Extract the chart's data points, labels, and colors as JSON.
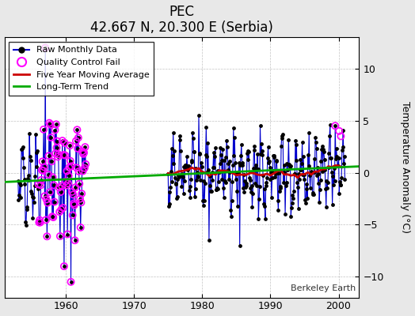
{
  "title": "PEC",
  "subtitle": "42.667 N, 20.300 E (Serbia)",
  "ylabel": "Temperature Anomaly (°C)",
  "attribution": "Berkeley Earth",
  "bg_color": "#e8e8e8",
  "plot_bg_color": "#ffffff",
  "xlim": [
    1951,
    2003
  ],
  "ylim": [
    -12,
    13
  ],
  "yticks": [
    -10,
    -5,
    0,
    5,
    10
  ],
  "xticks": [
    1960,
    1970,
    1980,
    1990,
    2000
  ],
  "seg1_start": 1953,
  "seg1_end": 1963,
  "seg2_start": 1975,
  "seg2_end": 2001,
  "line_color": "#0000cc",
  "dot_color": "#000000",
  "qc_color": "#ff00ff",
  "moving_avg_color": "#cc0000",
  "trend_color": "#00aa00",
  "trend_x": [
    1951,
    2003
  ],
  "trend_y": [
    -0.9,
    0.6
  ]
}
